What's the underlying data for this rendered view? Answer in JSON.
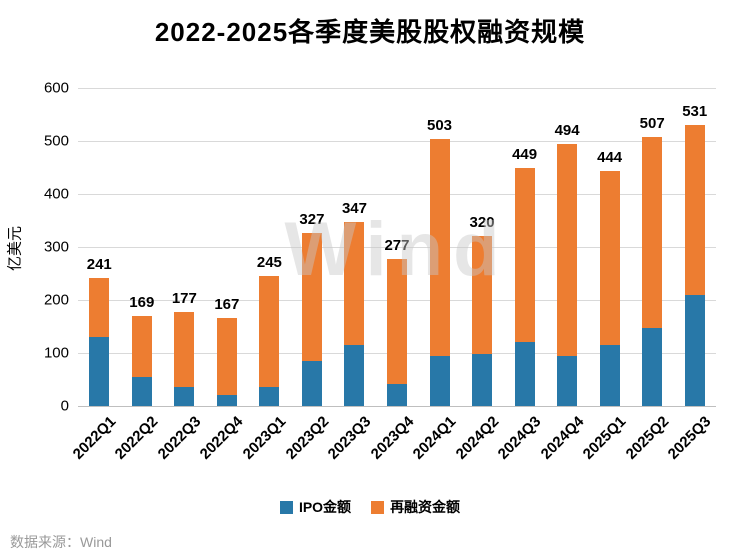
{
  "title": "2022-2025各季度美股股权融资规模",
  "watermark": "Wind",
  "source": "数据来源：Wind",
  "colors": {
    "ipo_blue": "#2878A8",
    "refi_orange": "#ED7D31",
    "gridline": "#d9d9d9"
  },
  "legend": [
    {
      "label": "IPO金额",
      "color": "#2878A8"
    },
    {
      "label": "再融资金额",
      "color": "#ED7D31"
    }
  ],
  "chart_data": {
    "type": "bar",
    "stacked": true,
    "title": "2022-2025各季度美股股权融资规模",
    "xlabel": "",
    "ylabel": "亿美元",
    "ylim": [
      0,
      600
    ],
    "ytick_step": 100,
    "yticks": [
      0,
      100,
      200,
      300,
      400,
      500,
      600
    ],
    "grid": true,
    "legend_position": "bottom",
    "categories": [
      "2022Q1",
      "2022Q2",
      "2022Q3",
      "2022Q4",
      "2023Q1",
      "2023Q2",
      "2023Q3",
      "2023Q4",
      "2024Q1",
      "2024Q2",
      "2024Q3",
      "2024Q4",
      "2025Q1",
      "2025Q2",
      "2025Q3"
    ],
    "series": [
      {
        "name": "IPO金额",
        "color": "#2878A8",
        "values": [
          130,
          55,
          35,
          20,
          35,
          85,
          115,
          42,
          95,
          98,
          120,
          95,
          115,
          148,
          210
        ]
      },
      {
        "name": "再融资金额",
        "color": "#ED7D31",
        "values": [
          111,
          114,
          142,
          147,
          210,
          242,
          232,
          235,
          408,
          222,
          329,
          399,
          329,
          359,
          321
        ]
      }
    ],
    "totals": [
      241,
      169,
      177,
      167,
      245,
      327,
      347,
      277,
      503,
      320,
      449,
      494,
      444,
      507,
      531
    ]
  }
}
